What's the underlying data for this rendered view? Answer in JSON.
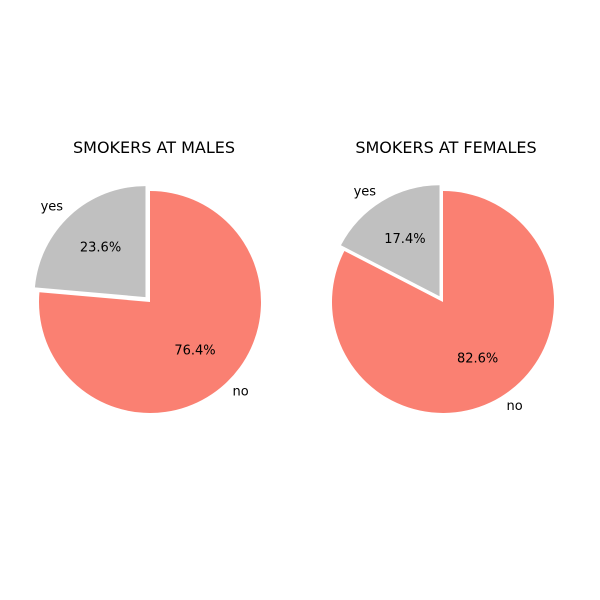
{
  "chart_data": [
    {
      "type": "pie",
      "title": "SMOKERS AT MALES",
      "categories": [
        "yes",
        "no"
      ],
      "values": [
        23.6,
        76.4
      ],
      "value_labels": [
        "23.6%",
        "76.4%"
      ],
      "colors": [
        "#c0c0c0",
        "#fa8072"
      ],
      "exploded": [
        "yes"
      ],
      "legend": "none"
    },
    {
      "type": "pie",
      "title": "SMOKERS AT FEMALES",
      "categories": [
        "yes",
        "no"
      ],
      "values": [
        17.4,
        82.6
      ],
      "value_labels": [
        "17.4%",
        "82.6%"
      ],
      "colors": [
        "#c0c0c0",
        "#fa8072"
      ],
      "exploded": [
        "yes"
      ],
      "legend": "none"
    }
  ]
}
